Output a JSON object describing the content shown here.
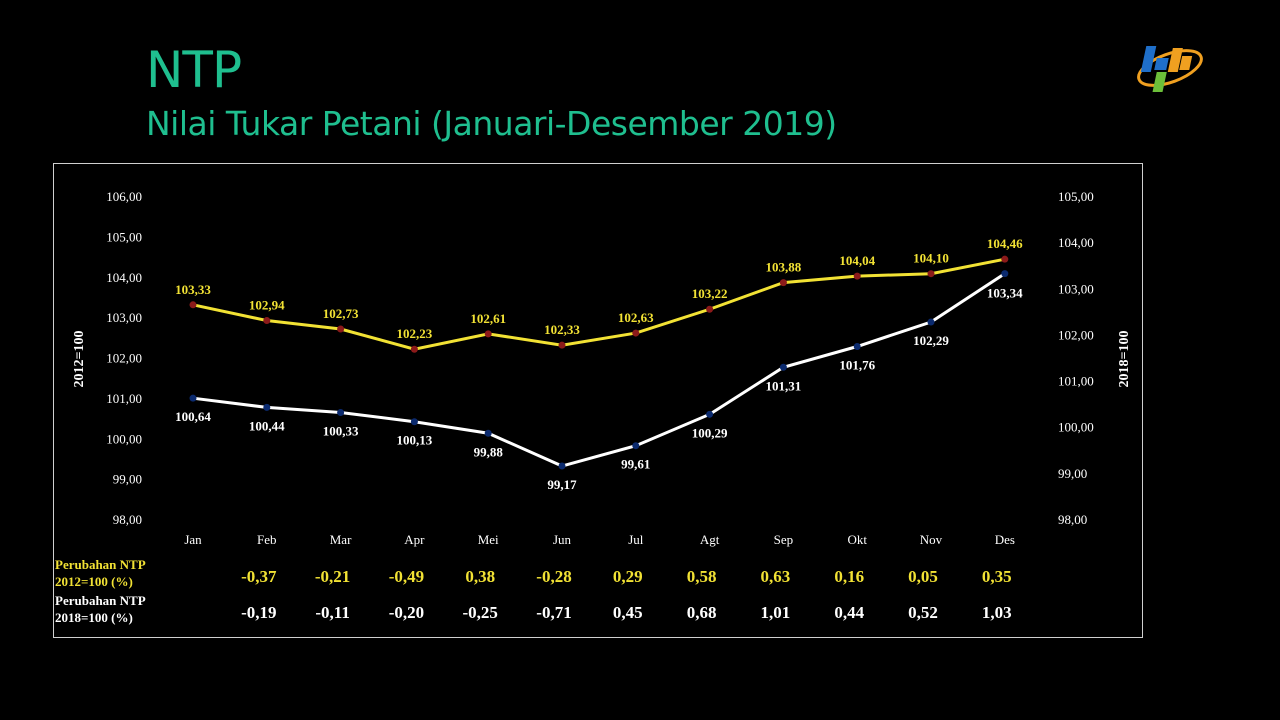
{
  "slide": {
    "title": "NTP",
    "subtitle": "Nilai Tukar Petani (Januari-Desember 2019)",
    "logo_icon": "bps-logo-icon",
    "title_color": "#1fbf8f"
  },
  "chart_data": {
    "type": "line",
    "categories": [
      "Jan",
      "Feb",
      "Mar",
      "Apr",
      "Mei",
      "Jun",
      "Jul",
      "Agt",
      "Sep",
      "Okt",
      "Nov",
      "Des"
    ],
    "series": [
      {
        "name": "2012=100",
        "axis": "left",
        "color": "#f2e234",
        "marker_color": "#8b1a1a",
        "values": [
          103.33,
          102.94,
          102.73,
          102.23,
          102.61,
          102.33,
          102.63,
          103.22,
          103.88,
          104.04,
          104.1,
          104.46
        ],
        "labels": [
          "103,33",
          "102,94",
          "102,73",
          "102,23",
          "102,61",
          "102,33",
          "102,63",
          "103,22",
          "103,88",
          "104,04",
          "104,10",
          "104,46"
        ]
      },
      {
        "name": "2018=100",
        "axis": "right",
        "color": "#ffffff",
        "marker_color": "#0b2a6e",
        "values": [
          100.64,
          100.44,
          100.33,
          100.13,
          99.88,
          99.17,
          99.61,
          100.29,
          101.31,
          101.76,
          102.29,
          103.34
        ],
        "labels": [
          "100,64",
          "100,44",
          "100,33",
          "100,13",
          "99,88",
          "99,17",
          "99,61",
          "100,29",
          "101,31",
          "101,76",
          "102,29",
          "103,34"
        ]
      }
    ],
    "y_left": {
      "title": "2012=100",
      "ylim": [
        98,
        106
      ],
      "ticks": [
        "98,00",
        "99,00",
        "100,00",
        "101,00",
        "102,00",
        "103,00",
        "104,00",
        "105,00",
        "106,00"
      ]
    },
    "y_right": {
      "title": "2018=100",
      "ylim": [
        98,
        105
      ],
      "ticks": [
        "98,00",
        "99,00",
        "100,00",
        "101,00",
        "102,00",
        "103,00",
        "104,00",
        "105,00"
      ]
    },
    "grid": false,
    "changes": [
      {
        "label_line1": "Perubahan NTP",
        "label_line2": "2012=100 (%)",
        "color": "#f2e234",
        "values": [
          "-0,37",
          "-0,21",
          "-0,49",
          "0,38",
          "-0,28",
          "0,29",
          "0,58",
          "0,63",
          "0,16",
          "0,05",
          "0,35"
        ]
      },
      {
        "label_line1": "Perubahan NTP",
        "label_line2": "2018=100 (%)",
        "color": "#ffffff",
        "values": [
          "-0,19",
          "-0,11",
          "-0,20",
          "-0,25",
          "-0,71",
          "0,45",
          "0,68",
          "1,01",
          "0,44",
          "0,52",
          "1,03"
        ]
      }
    ]
  }
}
